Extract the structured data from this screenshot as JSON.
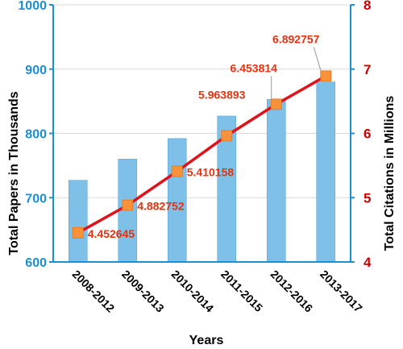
{
  "chart_data": {
    "type": "bar+line",
    "categories": [
      "2008-2012",
      "2009-2013",
      "2010-2014",
      "2011-2015",
      "2012-2016",
      "2013-2017"
    ],
    "bars": {
      "axis": "left",
      "values": [
        727,
        760,
        792,
        827,
        853,
        880
      ],
      "color": "#7fc0e8",
      "edge_color": "#5aa8d8"
    },
    "line": {
      "axis": "right",
      "values": [
        4.452645,
        4.882752,
        5.410158,
        5.963893,
        6.453814,
        6.892757
      ],
      "labels": [
        "4.452645",
        "4.882752",
        "5.410158",
        "5.963893",
        "6.453814",
        "6.892757"
      ],
      "line_color": "#e0121b",
      "marker_color": "#f7923b",
      "label_color": "#e53212"
    },
    "y_left": {
      "label": "Total Papers in Thousands",
      "lim": [
        600,
        1000
      ],
      "ticks": [
        "600",
        "700",
        "800",
        "900",
        "1000"
      ],
      "color": "#1a8fd4"
    },
    "y_right": {
      "label": "Total Citations in Millions",
      "lim": [
        4,
        8
      ],
      "ticks": [
        "4",
        "5",
        "6",
        "7",
        "8"
      ],
      "color": "#cc0000"
    },
    "xlabel": "Years",
    "grid": true
  }
}
